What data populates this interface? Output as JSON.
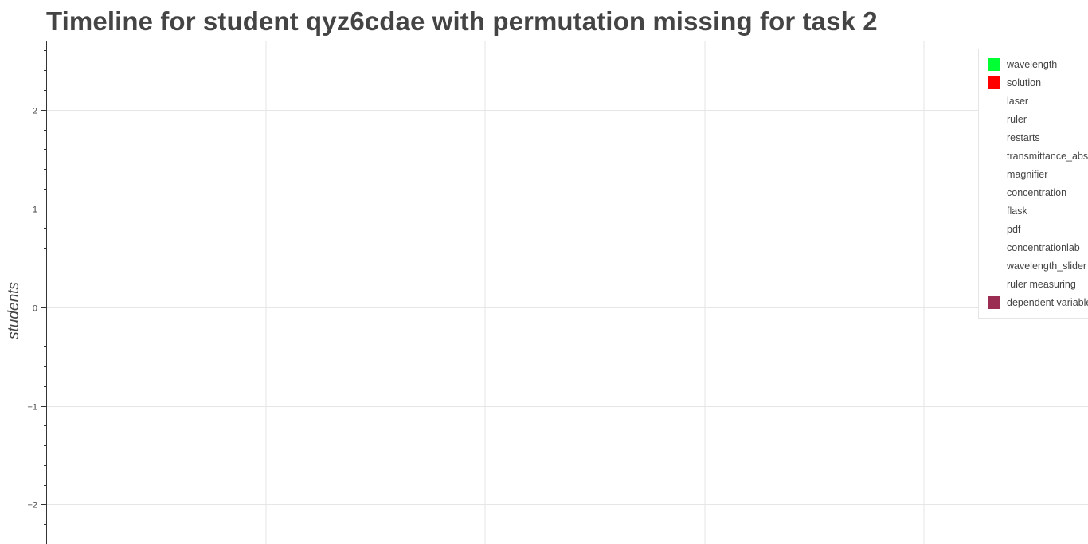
{
  "chart_data": {
    "type": "bar",
    "title": "Timeline for student qyz6cdae with permutation missing for task 2",
    "ylabel": "students",
    "ylim": [
      -2.4,
      2.7
    ],
    "yticks": [
      -2,
      -1,
      0,
      1,
      2
    ],
    "ytick_labels": [
      "−2",
      "−1",
      "0",
      "1",
      "2"
    ],
    "x_gridline_count": 5,
    "grid": true,
    "legend_position": "top-right",
    "series": [
      {
        "name": "wavelength",
        "color": "#00ff33",
        "values": []
      },
      {
        "name": "solution",
        "color": "#ff0000",
        "values": []
      },
      {
        "name": "laser",
        "color": "",
        "values": []
      },
      {
        "name": "ruler",
        "color": "",
        "values": []
      },
      {
        "name": "restarts",
        "color": "",
        "values": []
      },
      {
        "name": "transmittance_absorbance",
        "color": "",
        "values": []
      },
      {
        "name": "magnifier",
        "color": "",
        "values": []
      },
      {
        "name": "concentration",
        "color": "",
        "values": []
      },
      {
        "name": "flask",
        "color": "",
        "values": []
      },
      {
        "name": "pdf",
        "color": "",
        "values": []
      },
      {
        "name": "concentrationlab",
        "color": "",
        "values": []
      },
      {
        "name": "wavelength_slider",
        "color": "",
        "values": []
      },
      {
        "name": "ruler measuring",
        "color": "",
        "values": []
      },
      {
        "name": "dependent variable",
        "color": "#9b2c52",
        "values": []
      }
    ]
  }
}
